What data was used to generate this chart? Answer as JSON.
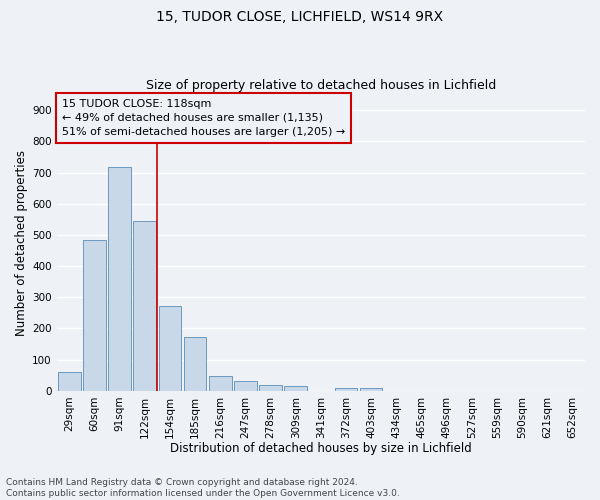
{
  "title1": "15, TUDOR CLOSE, LICHFIELD, WS14 9RX",
  "title2": "Size of property relative to detached houses in Lichfield",
  "xlabel": "Distribution of detached houses by size in Lichfield",
  "ylabel": "Number of detached properties",
  "footnote": "Contains HM Land Registry data © Crown copyright and database right 2024.\nContains public sector information licensed under the Open Government Licence v3.0.",
  "bar_labels": [
    "29sqm",
    "60sqm",
    "91sqm",
    "122sqm",
    "154sqm",
    "185sqm",
    "216sqm",
    "247sqm",
    "278sqm",
    "309sqm",
    "341sqm",
    "372sqm",
    "403sqm",
    "434sqm",
    "465sqm",
    "496sqm",
    "527sqm",
    "559sqm",
    "590sqm",
    "621sqm",
    "652sqm"
  ],
  "bar_values": [
    62,
    484,
    718,
    543,
    272,
    172,
    47,
    33,
    20,
    15,
    0,
    8,
    8,
    0,
    0,
    0,
    0,
    0,
    0,
    0,
    0
  ],
  "bar_color": "#c8d8e8",
  "bar_edge_color": "#5b8db8",
  "vline_x": 3.5,
  "vline_color": "#cc0000",
  "annotation_line1": "15 TUDOR CLOSE: 118sqm",
  "annotation_line2": "← 49% of detached houses are smaller (1,135)",
  "annotation_line3": "51% of semi-detached houses are larger (1,205) →",
  "annotation_box_color": "#cc0000",
  "ylim": [
    0,
    950
  ],
  "yticks": [
    0,
    100,
    200,
    300,
    400,
    500,
    600,
    700,
    800,
    900
  ],
  "background_color": "#eef2f7",
  "grid_color": "#ffffff",
  "title1_fontsize": 10,
  "title2_fontsize": 9,
  "xlabel_fontsize": 8.5,
  "ylabel_fontsize": 8.5,
  "tick_fontsize": 7.5,
  "annotation_fontsize": 8,
  "footnote_fontsize": 6.5
}
